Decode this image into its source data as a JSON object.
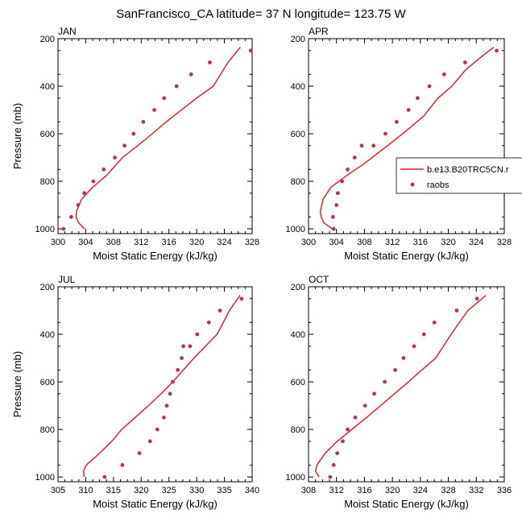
{
  "figure_title": "SanFrancisco_CA  latitude= 37 N longitude= 123.75 W",
  "legend": {
    "line_label": "b.e13.B20TRC5CN.r",
    "marker_label": "raobs"
  },
  "colors": {
    "model_line": "#e8141b",
    "obs_marker": "#b5345a",
    "axis": "#000000"
  },
  "chart_data": [
    {
      "type": "scatter",
      "panel": "JAN",
      "xlabel": "Moist Static Energy (kJ/kg)",
      "ylabel": "Pressure (mb)",
      "xlim": [
        300,
        328
      ],
      "xticks": [
        300,
        304,
        308,
        312,
        316,
        320,
        324,
        328
      ],
      "ylim": [
        200,
        1020
      ],
      "yticks": [
        200,
        400,
        600,
        800,
        1000
      ],
      "series": [
        {
          "name": "b.e13.B20TRC5CN.r",
          "kind": "line",
          "x": [
            303.8,
            303.0,
            302.6,
            302.7,
            303.4,
            305.0,
            307.0,
            309.3,
            311.5,
            313.6,
            315.6,
            317.8,
            320.0,
            322.4,
            324.5,
            326.3
          ],
          "y": [
            1000,
            975,
            950,
            925,
            875,
            825,
            775,
            700,
            650,
            600,
            550,
            500,
            450,
            400,
            300,
            236
          ]
        },
        {
          "name": "raobs",
          "kind": "scatter",
          "x": [
            300.8,
            301.9,
            302.9,
            303.8,
            305.1,
            306.6,
            308.2,
            309.6,
            310.9,
            312.3,
            313.9,
            315.3,
            317.1,
            319.2,
            321.9,
            327.8
          ],
          "y": [
            1000,
            950,
            900,
            850,
            800,
            750,
            700,
            650,
            600,
            550,
            500,
            450,
            400,
            350,
            300,
            250
          ]
        }
      ]
    },
    {
      "type": "scatter",
      "panel": "APR",
      "xlabel": "Moist Static Energy (kJ/kg)",
      "ylabel": "",
      "xlim": [
        300,
        328
      ],
      "xticks": [
        300,
        304,
        308,
        312,
        316,
        320,
        324,
        328
      ],
      "ylim": [
        200,
        1020
      ],
      "yticks": [
        200,
        400,
        600,
        800,
        1000
      ],
      "series": [
        {
          "name": "b.e13.B20TRC5CN.r",
          "kind": "line",
          "x": [
            303.4,
            302.2,
            301.8,
            301.7,
            302.1,
            303.2,
            305.5,
            308.0,
            310.2,
            312.4,
            314.5,
            316.5,
            318.5,
            320.5,
            322.5,
            324.8,
            326.5
          ],
          "y": [
            1000,
            975,
            950,
            925,
            875,
            825,
            775,
            725,
            675,
            625,
            575,
            525,
            450,
            400,
            330,
            275,
            236
          ]
        },
        {
          "name": "raobs",
          "kind": "scatter",
          "x": [
            303.6,
            303.5,
            304.0,
            304.2,
            304.8,
            305.6,
            306.6,
            307.6,
            309.3,
            311.0,
            312.6,
            314.3,
            315.6,
            317.3,
            319.4,
            322.4,
            326.9
          ],
          "y": [
            1000,
            950,
            900,
            850,
            800,
            750,
            700,
            650,
            650,
            600,
            550,
            500,
            450,
            400,
            350,
            300,
            250
          ]
        }
      ]
    },
    {
      "type": "scatter",
      "panel": "JUL",
      "xlabel": "Moist Static Energy (kJ/kg)",
      "ylabel": "Pressure (mb)",
      "xlim": [
        305,
        340
      ],
      "xticks": [
        305,
        310,
        315,
        320,
        325,
        330,
        335,
        340
      ],
      "ylim": [
        200,
        1020
      ],
      "yticks": [
        200,
        400,
        600,
        800,
        1000
      ],
      "series": [
        {
          "name": "b.e13.B20TRC5CN.r",
          "kind": "line",
          "x": [
            309.7,
            309.6,
            310.1,
            312.5,
            314.7,
            316.5,
            318.9,
            321.3,
            323.6,
            325.7,
            327.6,
            329.5,
            331.6,
            333.7,
            335.9,
            337.8
          ],
          "y": [
            1000,
            975,
            950,
            900,
            850,
            800,
            750,
            700,
            650,
            600,
            550,
            500,
            450,
            400,
            300,
            236
          ]
        },
        {
          "name": "raobs",
          "kind": "scatter",
          "x": [
            313.4,
            316.6,
            319.7,
            321.6,
            322.9,
            324.1,
            324.6,
            325.2,
            325.7,
            326.6,
            327.3,
            327.6,
            328.8,
            330.1,
            332.2,
            334.2,
            338.1
          ],
          "y": [
            1000,
            950,
            900,
            850,
            800,
            750,
            700,
            650,
            600,
            550,
            500,
            450,
            450,
            400,
            350,
            300,
            250
          ]
        }
      ]
    },
    {
      "type": "scatter",
      "panel": "OCT",
      "xlabel": "Moist Static Energy (kJ/kg)",
      "ylabel": "",
      "xlim": [
        308,
        336
      ],
      "xticks": [
        308,
        312,
        316,
        320,
        324,
        328,
        332,
        336
      ],
      "ylim": [
        200,
        1020
      ],
      "yticks": [
        200,
        400,
        600,
        800,
        1000
      ],
      "series": [
        {
          "name": "b.e13.B20TRC5CN.r",
          "kind": "line",
          "x": [
            309.5,
            309.0,
            309.2,
            310.4,
            312.1,
            314.2,
            316.3,
            318.3,
            320.3,
            322.3,
            324.2,
            326.2,
            328.4,
            330.8,
            333.4
          ],
          "y": [
            1000,
            975,
            950,
            900,
            850,
            800,
            750,
            700,
            650,
            600,
            550,
            500,
            400,
            300,
            236
          ]
        },
        {
          "name": "raobs",
          "kind": "scatter",
          "x": [
            311.1,
            311.6,
            312.1,
            312.9,
            313.6,
            314.7,
            316.1,
            317.4,
            318.9,
            320.4,
            321.6,
            323.1,
            324.5,
            326.0,
            329.2,
            332.1
          ],
          "y": [
            1000,
            950,
            900,
            850,
            800,
            750,
            700,
            650,
            600,
            550,
            500,
            450,
            400,
            350,
            300,
            250
          ]
        }
      ]
    }
  ]
}
